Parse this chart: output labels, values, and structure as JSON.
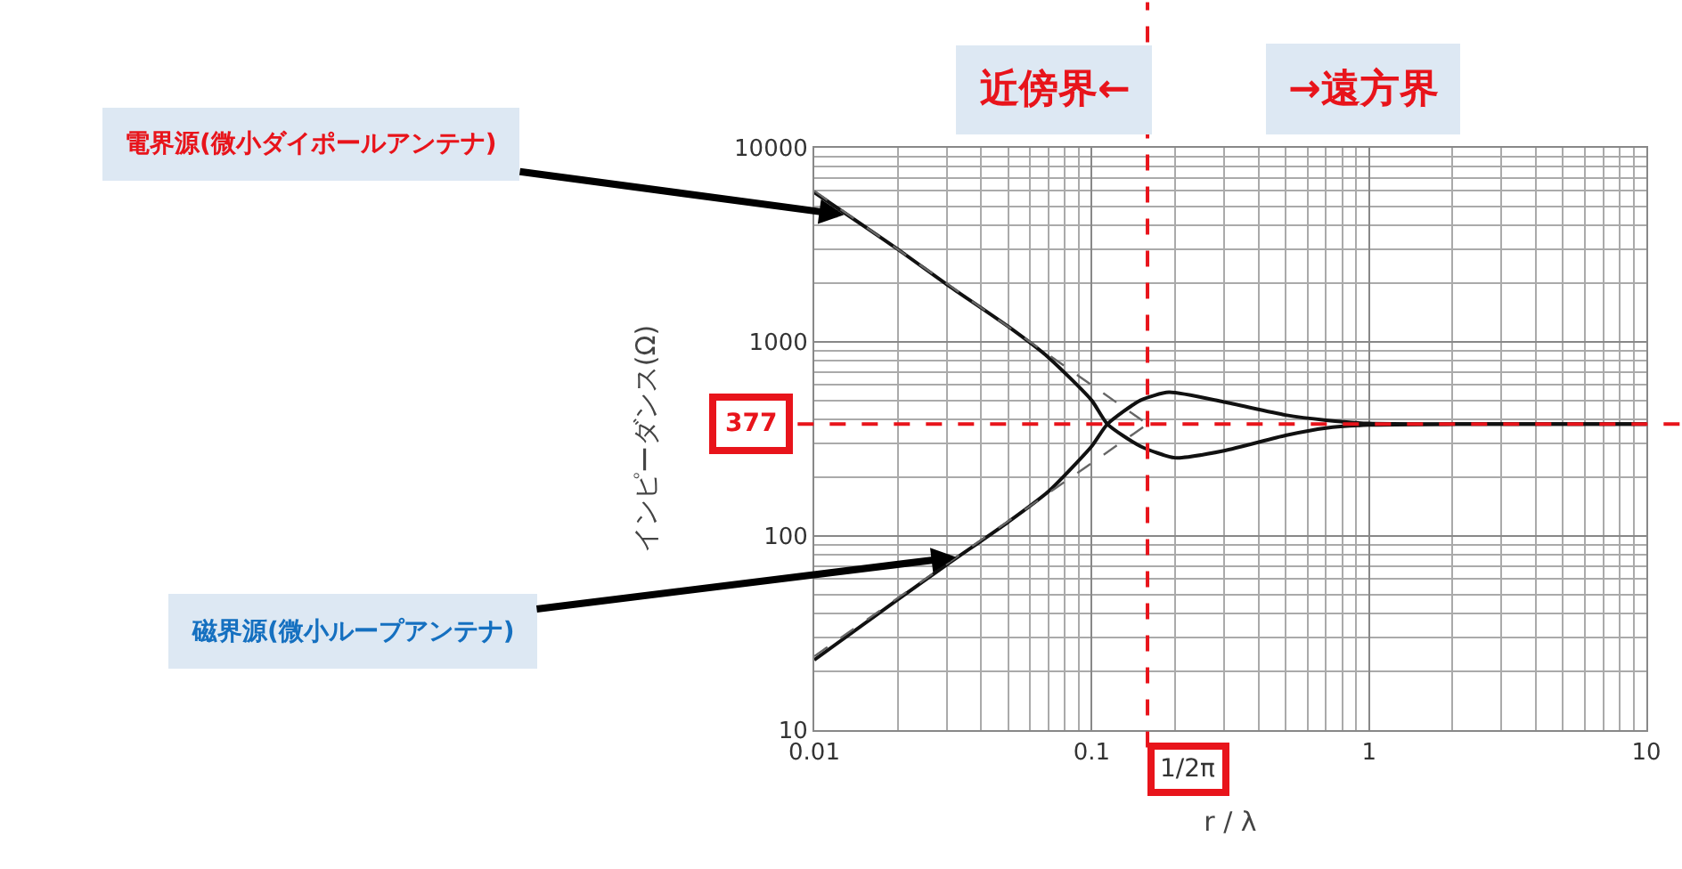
{
  "chart_data": {
    "type": "line",
    "xlabel": "r / λ",
    "ylabel": "インピーダンス(Ω)",
    "log": "xy",
    "xlim": [
      0.01,
      10
    ],
    "ylim": [
      10,
      10000
    ],
    "xticks": [
      0.01,
      0.1,
      1,
      10
    ],
    "yticks": [
      10,
      100,
      1000,
      10000
    ],
    "grid": true,
    "marker": "none",
    "series": [
      {
        "color": "#111111",
        "line_style": "solid",
        "x": [
          0.01,
          0.02,
          0.03,
          0.05,
          0.07,
          0.1,
          0.114,
          0.15,
          0.2,
          0.3,
          0.5,
          0.7,
          1,
          2,
          10
        ],
        "values": [
          5900,
          3000,
          1980,
          1200,
          830,
          500,
          377,
          290,
          253,
          275,
          330,
          360,
          373,
          377,
          377
        ]
      },
      {
        "color": "#111111",
        "line_style": "solid",
        "x": [
          0.01,
          0.02,
          0.03,
          0.05,
          0.07,
          0.1,
          0.114,
          0.15,
          0.19,
          0.3,
          0.5,
          0.7,
          1,
          2,
          10
        ],
        "values": [
          23,
          47,
          71,
          118,
          170,
          290,
          377,
          500,
          550,
          490,
          420,
          395,
          380,
          377,
          377
        ]
      },
      {
        "color": "#666666",
        "line_style": "dashed",
        "x": [
          0.01,
          0.159
        ],
        "values": [
          6000,
          377
        ]
      },
      {
        "color": "#666666",
        "line_style": "dashed",
        "x": [
          0.01,
          0.159
        ],
        "values": [
          24,
          377
        ]
      }
    ],
    "ref_lines": [
      {
        "axis": "y",
        "value": 377,
        "label": "377",
        "color": "#e8141b",
        "line_style": "dashed"
      },
      {
        "axis": "x",
        "value": 0.159,
        "label": "1/2π",
        "color": "#e8141b",
        "line_style": "dashed"
      }
    ],
    "annotations": [
      "近傍界←",
      "→遠方界",
      {
        "text": "電界源(微小ダイポールアンテナ)",
        "x": 0.013,
        "y": 4500
      },
      {
        "text": "磁界源(微小ループアンテナ)",
        "x": 0.033,
        "y": 78
      }
    ]
  }
}
